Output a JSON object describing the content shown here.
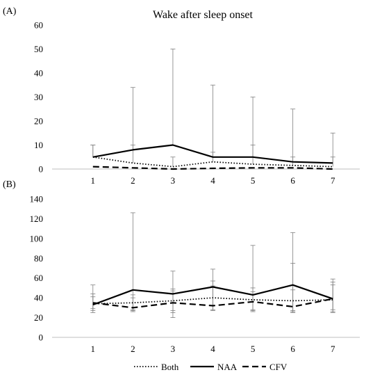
{
  "chart_data": [
    {
      "type": "line",
      "panel_label": "(A)",
      "title": "Wake after sleep onset",
      "x": [
        1,
        2,
        3,
        4,
        5,
        6,
        7
      ],
      "ylim": [
        0,
        60
      ],
      "yticks": [
        0,
        10,
        20,
        30,
        40,
        50,
        60
      ],
      "grid": false,
      "series": [
        {
          "name": "Both",
          "style": "dotted",
          "values": [
            5,
            2.5,
            1,
            3,
            2,
            1.5,
            1
          ],
          "err_hi": [
            10,
            10,
            5,
            7,
            10,
            5,
            5
          ]
        },
        {
          "name": "NAA",
          "style": "solid",
          "values": [
            5,
            8,
            10,
            5,
            5,
            3,
            2.5
          ],
          "err_hi": [
            10,
            34,
            50,
            35,
            30,
            25,
            15
          ]
        },
        {
          "name": "CFV",
          "style": "dashed",
          "values": [
            1,
            0.5,
            0,
            0.3,
            0.5,
            0.5,
            0
          ],
          "err_hi": [
            0,
            0,
            0,
            0,
            0,
            0,
            0
          ]
        }
      ]
    },
    {
      "type": "line",
      "panel_label": "(B)",
      "title": "",
      "x": [
        1,
        2,
        3,
        4,
        5,
        6,
        7
      ],
      "ylim": [
        0,
        140
      ],
      "yticks": [
        0,
        20,
        40,
        60,
        80,
        100,
        120,
        140
      ],
      "grid": false,
      "legend_position": "bottom",
      "series": [
        {
          "name": "Both",
          "style": "dotted",
          "values": [
            34,
            35,
            37,
            40,
            38,
            37,
            38
          ],
          "err_lo": [
            25,
            27,
            27,
            28,
            27,
            26,
            26
          ],
          "err_hi": [
            44,
            43,
            47,
            52,
            50,
            48,
            53
          ]
        },
        {
          "name": "NAA",
          "style": "solid",
          "values": [
            33,
            48,
            44,
            51,
            43,
            53,
            39
          ],
          "err_lo": [
            27,
            28,
            25,
            32,
            28,
            27,
            25
          ],
          "err_hi": [
            53,
            126,
            67,
            69,
            93,
            106,
            59
          ]
        },
        {
          "name": "CFV",
          "style": "dashed",
          "values": [
            35,
            30,
            35,
            32,
            36,
            31,
            39
          ],
          "err_lo": [
            29,
            26,
            20,
            27,
            26,
            25,
            28
          ],
          "err_hi": [
            41,
            40,
            49,
            57,
            46,
            75,
            56
          ]
        }
      ]
    }
  ],
  "legend": [
    {
      "label": "Both",
      "style": "dotted"
    },
    {
      "label": "NAA",
      "style": "solid"
    },
    {
      "label": "CFV",
      "style": "dashed"
    }
  ]
}
